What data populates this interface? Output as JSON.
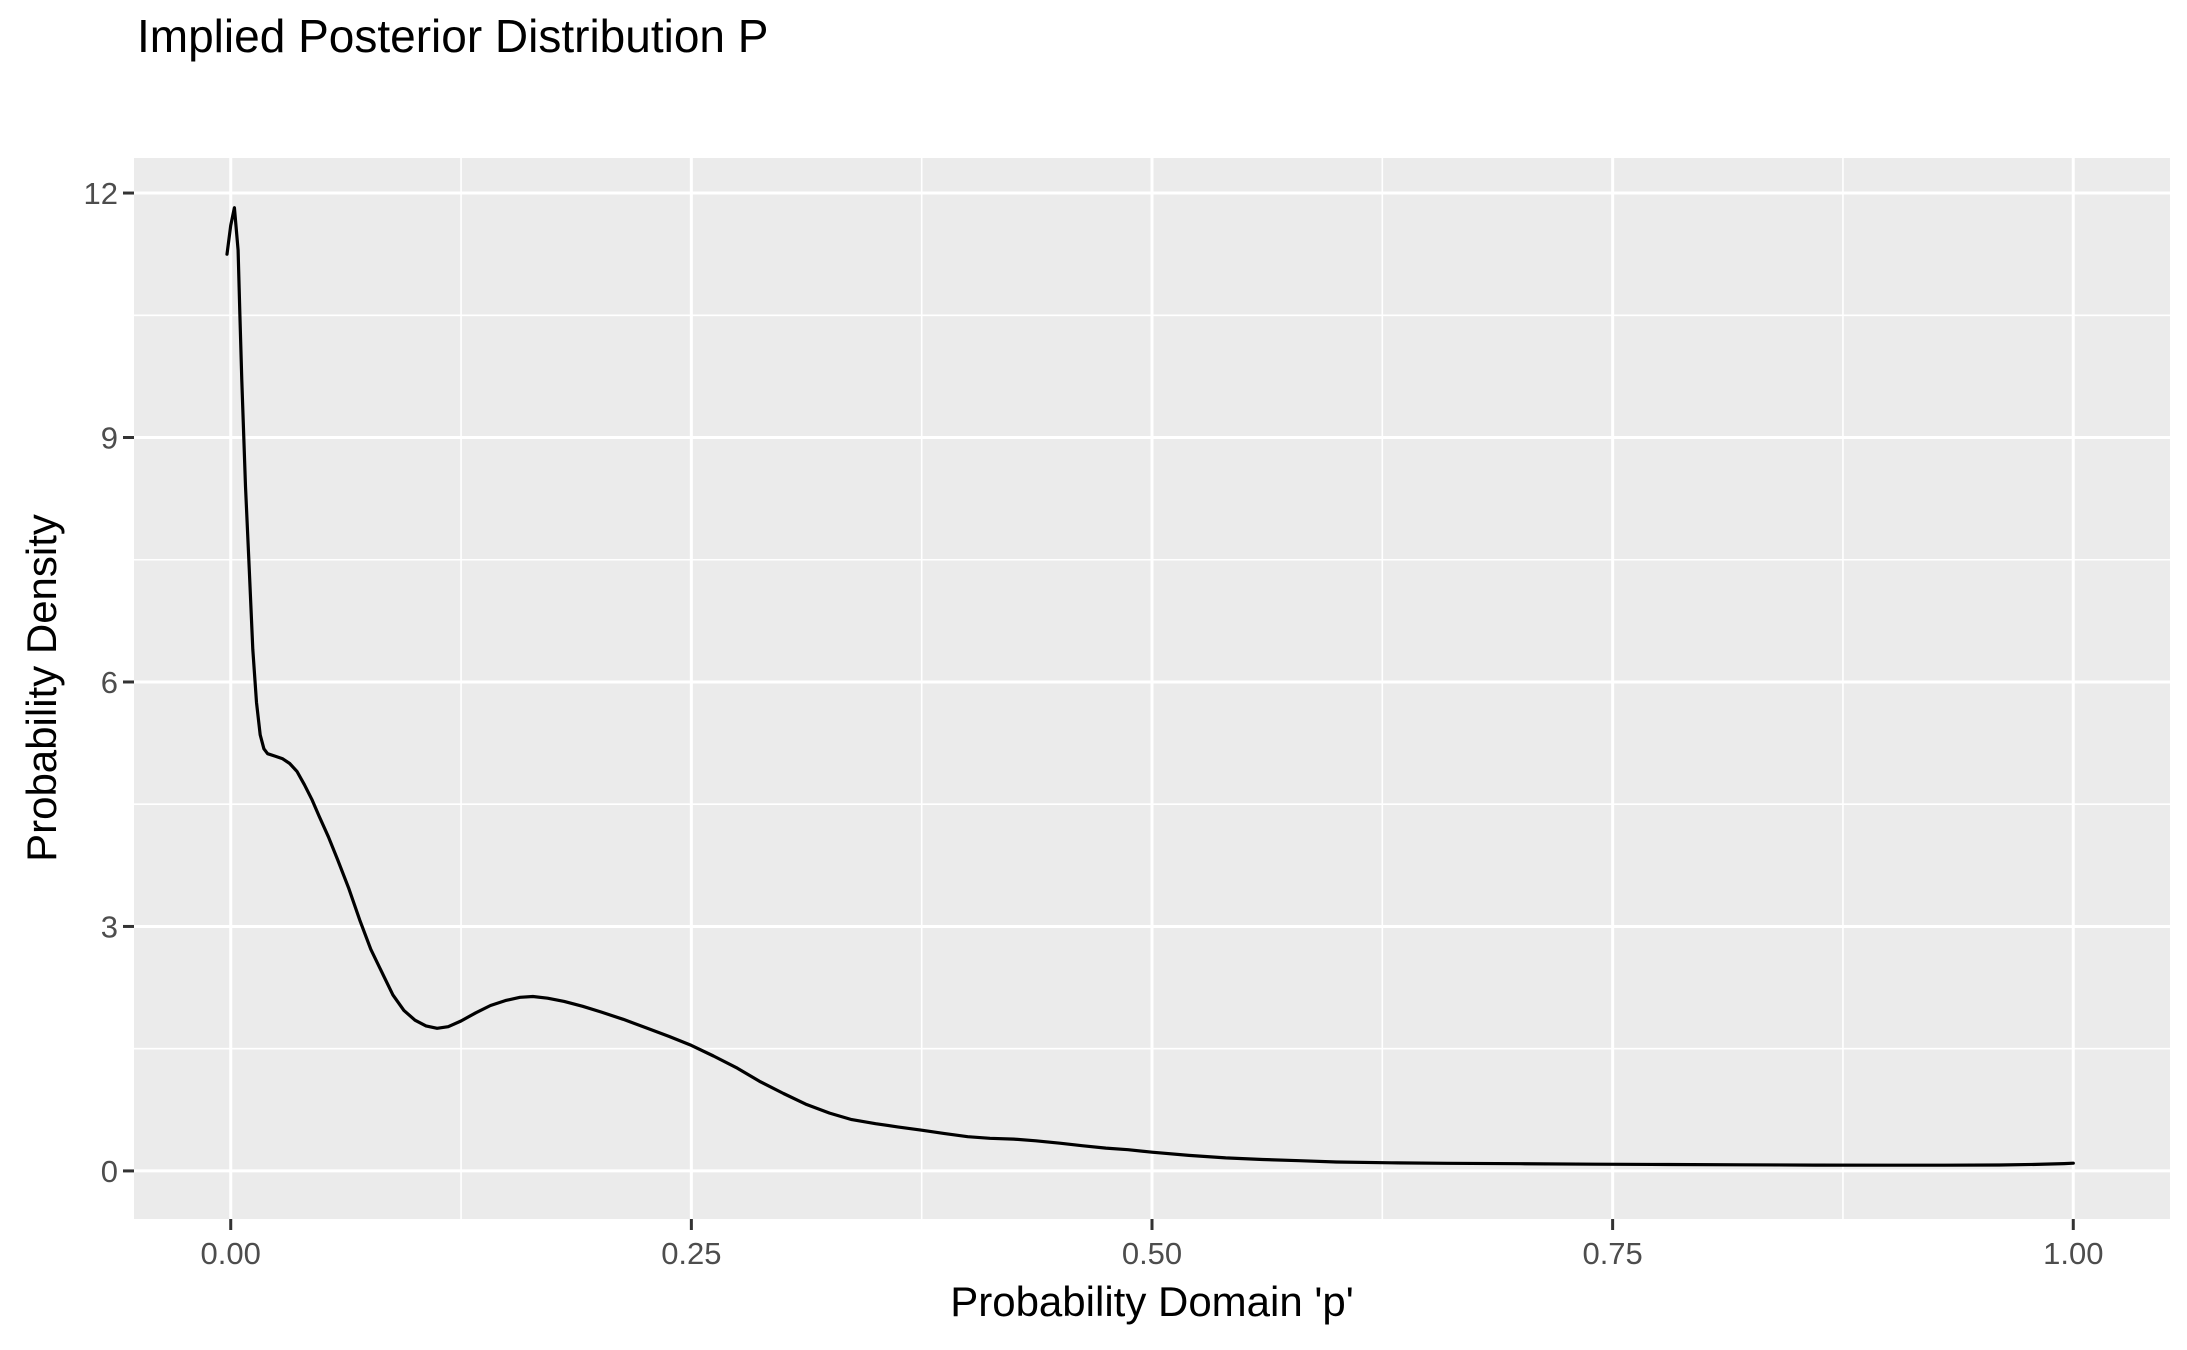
{
  "chart_data": {
    "type": "line",
    "title": "Implied Posterior Distribution P",
    "xlabel": "Probability Domain 'p'",
    "ylabel": "Probability Density",
    "grid": true,
    "legend_position": "none",
    "panel_background": "#EBEBEB",
    "grid_color": "#FFFFFF",
    "tick_mark_color": "#333333",
    "tick_label_color": "#4D4D4D",
    "xlim": [
      -0.0525,
      1.0525
    ],
    "ylim": [
      -0.59,
      12.43
    ],
    "x_ticks": [
      0.0,
      0.25,
      0.5,
      0.75,
      1.0
    ],
    "x_tick_labels": [
      "0.00",
      "0.25",
      "0.50",
      "0.75",
      "1.00"
    ],
    "y_ticks": [
      0,
      3,
      6,
      9,
      12
    ],
    "y_tick_labels": [
      "0",
      "3",
      "6",
      "9",
      "12"
    ],
    "x_minor_ticks": [
      0.125,
      0.375,
      0.625,
      0.875
    ],
    "y_minor_ticks": [
      1.5,
      4.5,
      7.5,
      10.5
    ],
    "series": [
      {
        "name": "posterior-density-curve",
        "color": "#000000",
        "linewidth": 3.2,
        "points": [
          [
            -0.002,
            11.25
          ],
          [
            0.0,
            11.6
          ],
          [
            0.002,
            11.82
          ],
          [
            0.004,
            11.3
          ],
          [
            0.005,
            10.5
          ],
          [
            0.006,
            9.7
          ],
          [
            0.008,
            8.4
          ],
          [
            0.01,
            7.4
          ],
          [
            0.012,
            6.4
          ],
          [
            0.014,
            5.75
          ],
          [
            0.016,
            5.35
          ],
          [
            0.018,
            5.18
          ],
          [
            0.02,
            5.12
          ],
          [
            0.024,
            5.09
          ],
          [
            0.028,
            5.06
          ],
          [
            0.032,
            5.0
          ],
          [
            0.036,
            4.9
          ],
          [
            0.04,
            4.74
          ],
          [
            0.044,
            4.56
          ],
          [
            0.048,
            4.35
          ],
          [
            0.053,
            4.1
          ],
          [
            0.058,
            3.82
          ],
          [
            0.064,
            3.47
          ],
          [
            0.07,
            3.08
          ],
          [
            0.076,
            2.72
          ],
          [
            0.082,
            2.44
          ],
          [
            0.088,
            2.16
          ],
          [
            0.094,
            1.97
          ],
          [
            0.1,
            1.85
          ],
          [
            0.106,
            1.78
          ],
          [
            0.112,
            1.75
          ],
          [
            0.118,
            1.77
          ],
          [
            0.125,
            1.84
          ],
          [
            0.133,
            1.94
          ],
          [
            0.141,
            2.03
          ],
          [
            0.149,
            2.09
          ],
          [
            0.157,
            2.13
          ],
          [
            0.164,
            2.14
          ],
          [
            0.172,
            2.12
          ],
          [
            0.181,
            2.08
          ],
          [
            0.191,
            2.02
          ],
          [
            0.201,
            1.95
          ],
          [
            0.213,
            1.86
          ],
          [
            0.225,
            1.76
          ],
          [
            0.238,
            1.65
          ],
          [
            0.25,
            1.54
          ],
          [
            0.262,
            1.41
          ],
          [
            0.275,
            1.26
          ],
          [
            0.287,
            1.1
          ],
          [
            0.3,
            0.95
          ],
          [
            0.312,
            0.82
          ],
          [
            0.325,
            0.71
          ],
          [
            0.337,
            0.63
          ],
          [
            0.35,
            0.58
          ],
          [
            0.362,
            0.54
          ],
          [
            0.375,
            0.5
          ],
          [
            0.387,
            0.46
          ],
          [
            0.4,
            0.42
          ],
          [
            0.412,
            0.4
          ],
          [
            0.425,
            0.39
          ],
          [
            0.437,
            0.37
          ],
          [
            0.45,
            0.34
          ],
          [
            0.462,
            0.31
          ],
          [
            0.475,
            0.28
          ],
          [
            0.487,
            0.26
          ],
          [
            0.5,
            0.23
          ],
          [
            0.52,
            0.19
          ],
          [
            0.54,
            0.16
          ],
          [
            0.56,
            0.14
          ],
          [
            0.58,
            0.125
          ],
          [
            0.6,
            0.11
          ],
          [
            0.63,
            0.1
          ],
          [
            0.66,
            0.093
          ],
          [
            0.7,
            0.088
          ],
          [
            0.74,
            0.083
          ],
          [
            0.78,
            0.079
          ],
          [
            0.82,
            0.075
          ],
          [
            0.86,
            0.072
          ],
          [
            0.9,
            0.07
          ],
          [
            0.93,
            0.07
          ],
          [
            0.96,
            0.073
          ],
          [
            0.98,
            0.08
          ],
          [
            0.995,
            0.09
          ],
          [
            1.0,
            0.095
          ]
        ]
      }
    ]
  }
}
